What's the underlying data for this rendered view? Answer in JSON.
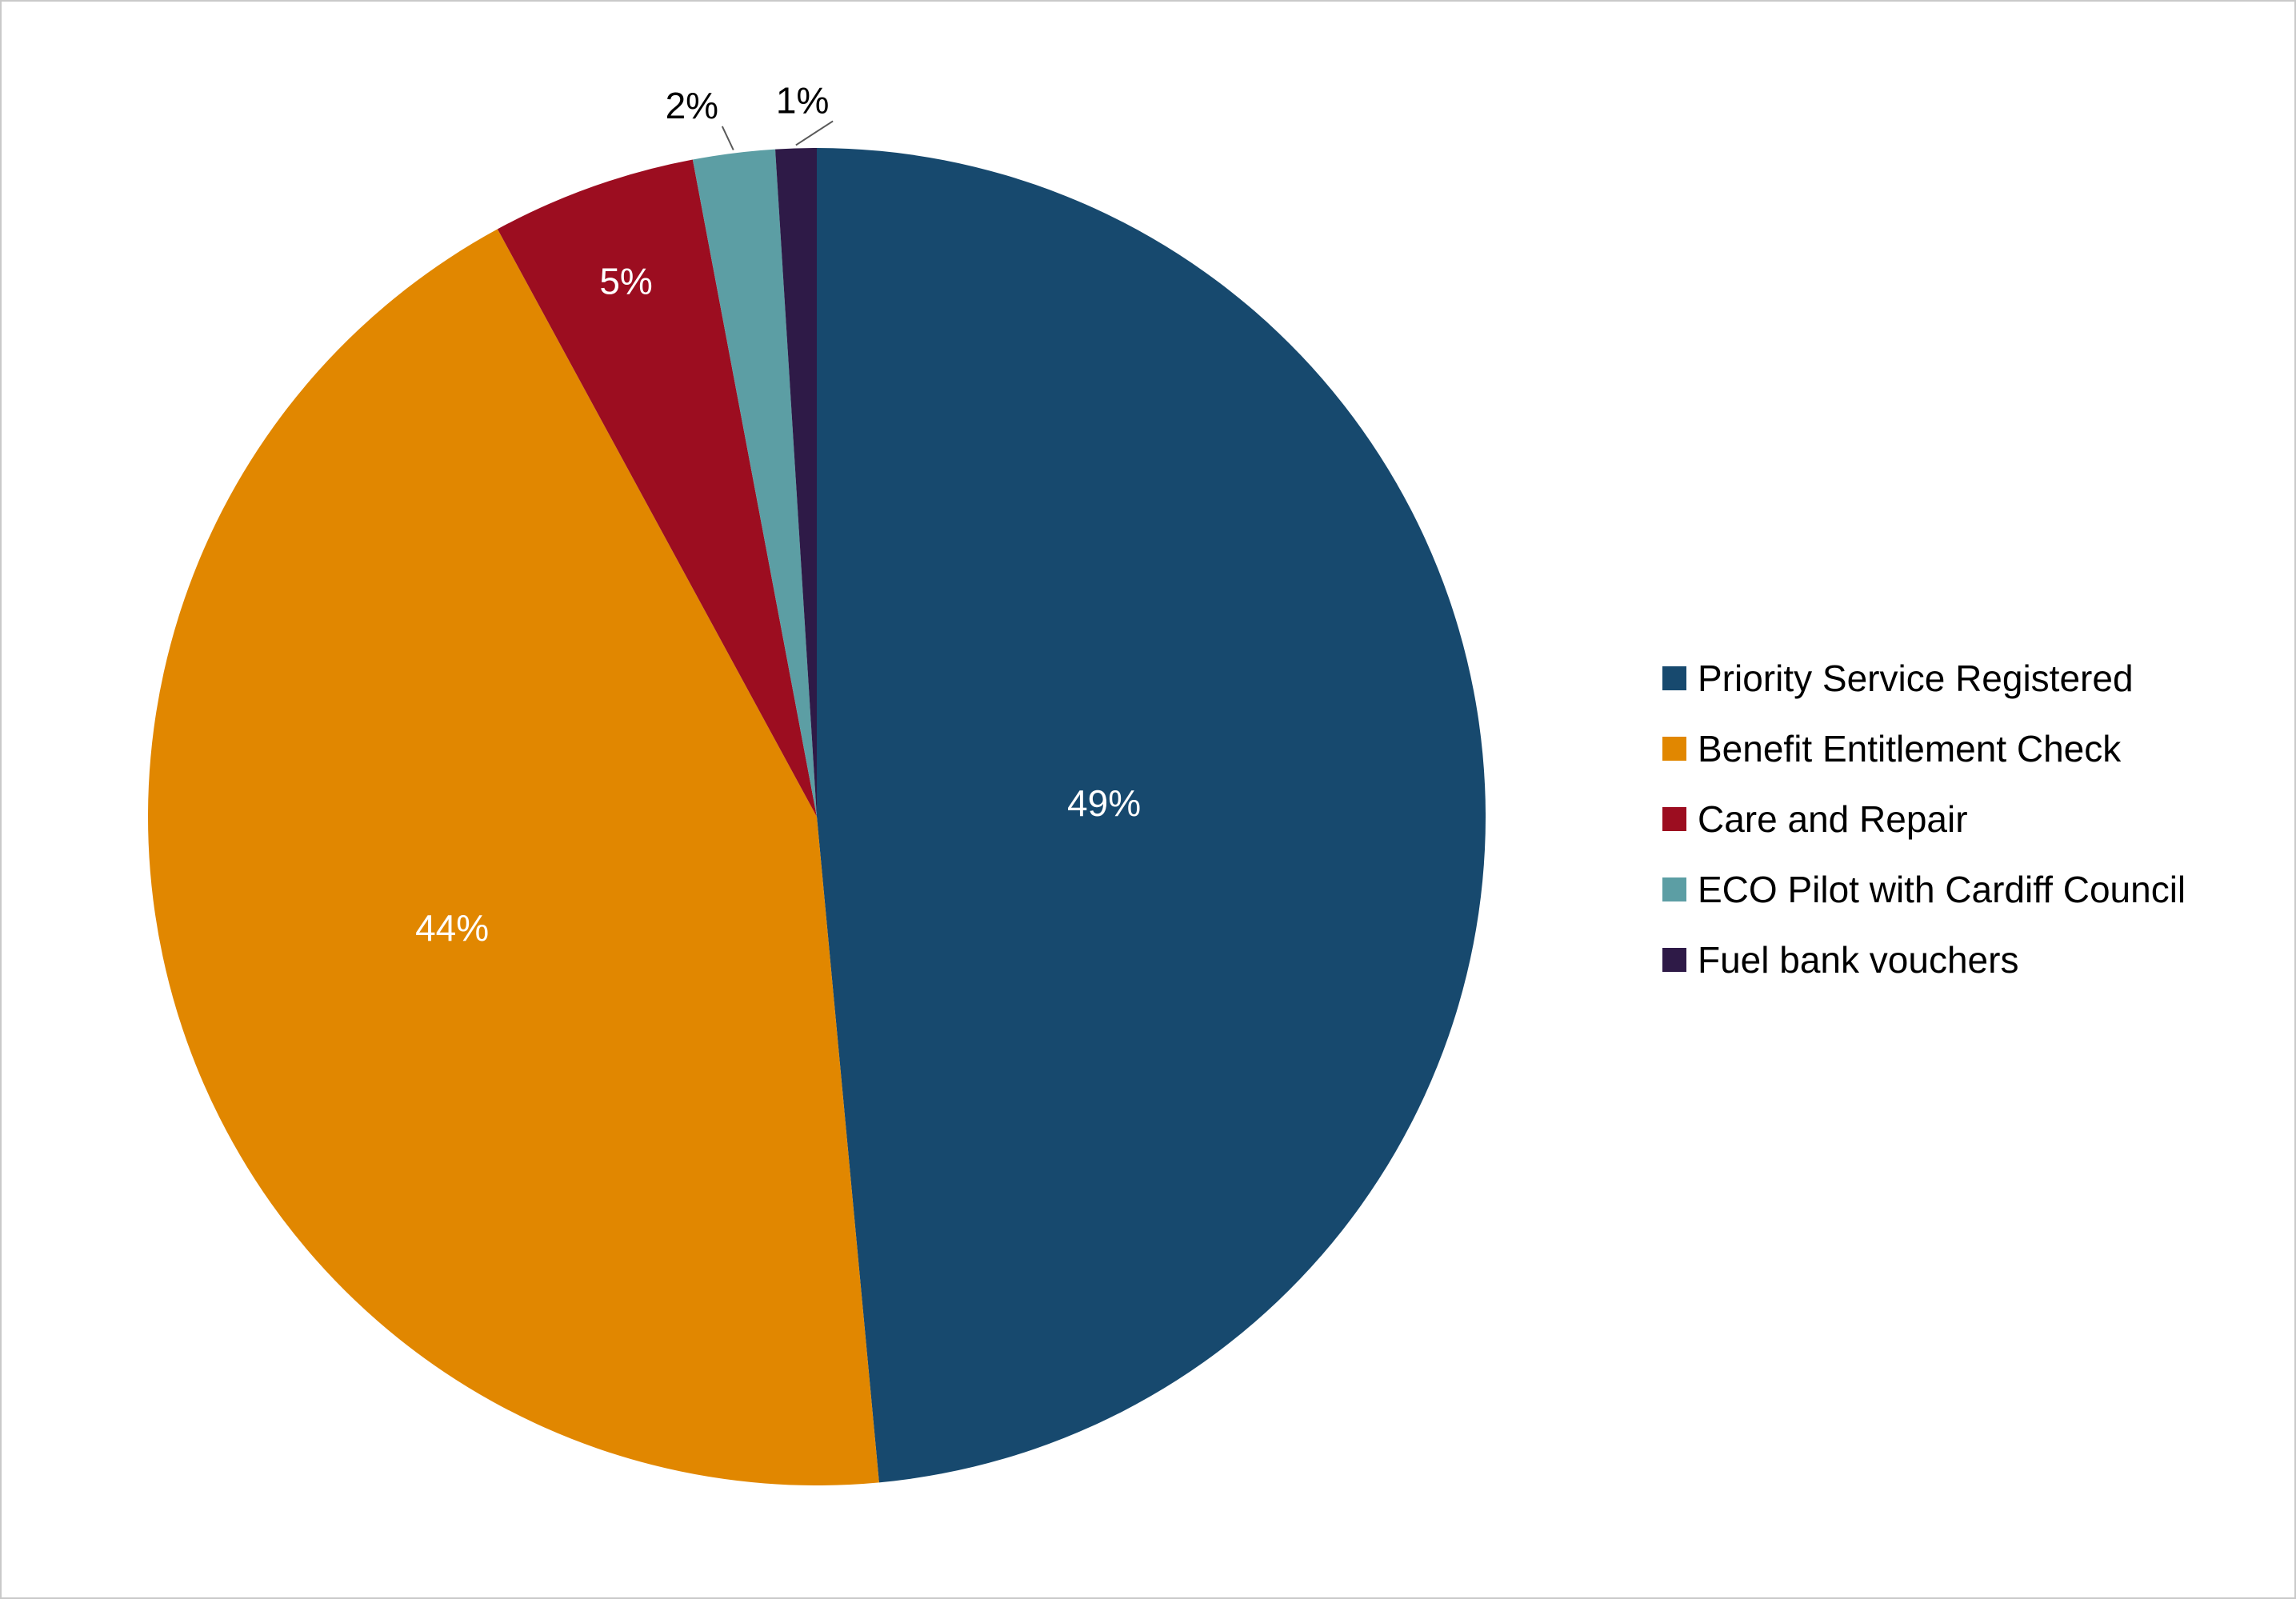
{
  "chart_data": {
    "type": "pie",
    "title": "",
    "labels": [
      "Priority Service Registered",
      "Benefit Entitlement Check",
      "Care and Repair",
      "ECO Pilot with Cardiff Council",
      "Fuel bank vouchers"
    ],
    "values": [
      49,
      44,
      5,
      2,
      1
    ],
    "value_labels": [
      "49%",
      "44%",
      "5%",
      "2%",
      "1%"
    ],
    "colors": [
      "#17496E",
      "#E18700",
      "#9C0D20",
      "#5C9EA4",
      "#2E1A47"
    ],
    "slice_label_text_colors": [
      "#FFFFFF",
      "#FFFFFF",
      "#FFFFFF",
      "#000000",
      "#000000"
    ],
    "legend_position": "right",
    "background_color": "#FFFFFF",
    "leader_line_color": "#595959"
  }
}
